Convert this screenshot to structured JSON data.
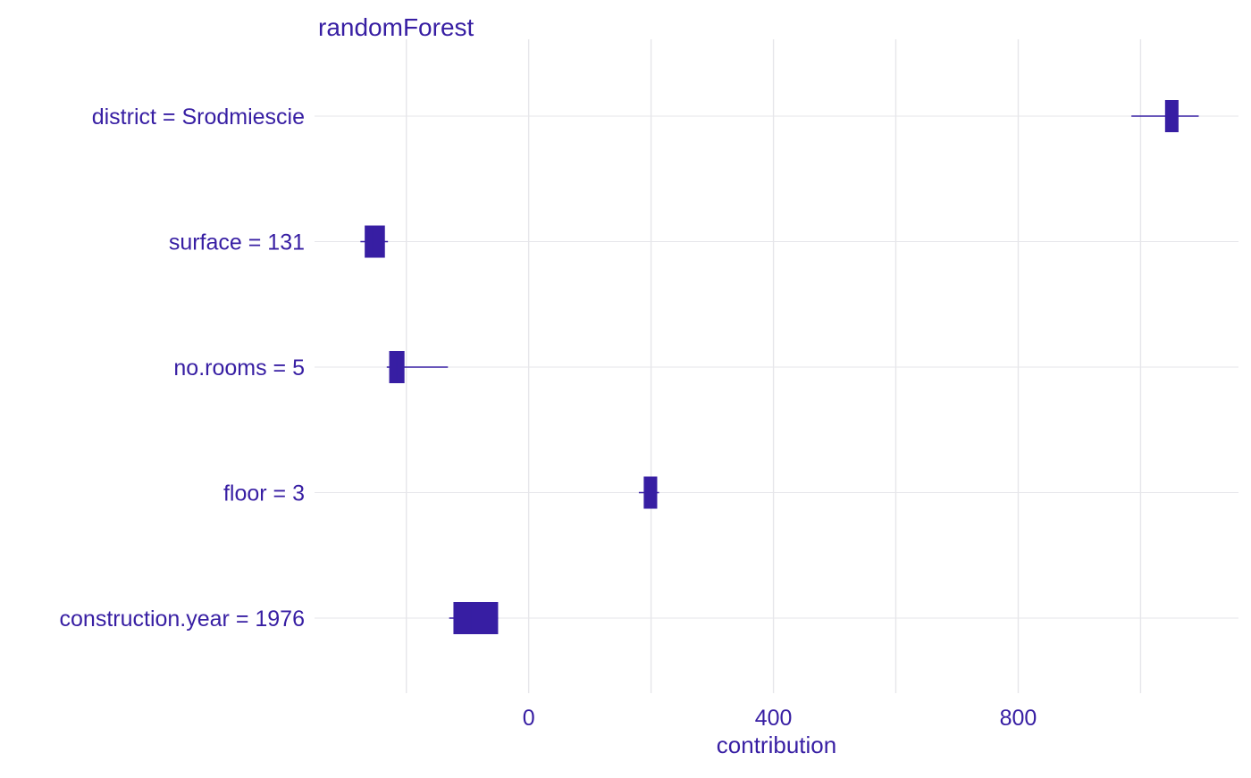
{
  "chart_data": {
    "type": "boxplot",
    "title": "randomForest",
    "xlabel": "contribution",
    "ylabel": "",
    "xlim": [
      -350,
      1160
    ],
    "xticks": [
      0,
      400,
      800
    ],
    "minor_gridlines": [
      -200,
      200,
      600,
      1000
    ],
    "grid": true,
    "color": "#371ea3",
    "gridline_color": "#e6e6ea",
    "categories": [
      "district = Srodmiescie",
      "surface = 131",
      "no.rooms = 5",
      "floor = 3",
      "construction.year = 1976"
    ],
    "boxes": [
      {
        "label": "district = Srodmiescie",
        "min": 985,
        "q1": 1040,
        "median": 1048,
        "q3": 1062,
        "max": 1095
      },
      {
        "label": "surface = 131",
        "min": -275,
        "q1": -268,
        "median": -255,
        "q3": -235,
        "max": -230
      },
      {
        "label": "no.rooms = 5",
        "min": -232,
        "q1": -228,
        "median": -215,
        "q3": -203,
        "max": -132
      },
      {
        "label": "floor = 3",
        "min": 180,
        "q1": 188,
        "median": 196,
        "q3": 210,
        "max": 213
      },
      {
        "label": "construction.year = 1976",
        "min": -130,
        "q1": -123,
        "median": -95,
        "q3": -50,
        "max": -50
      }
    ]
  }
}
